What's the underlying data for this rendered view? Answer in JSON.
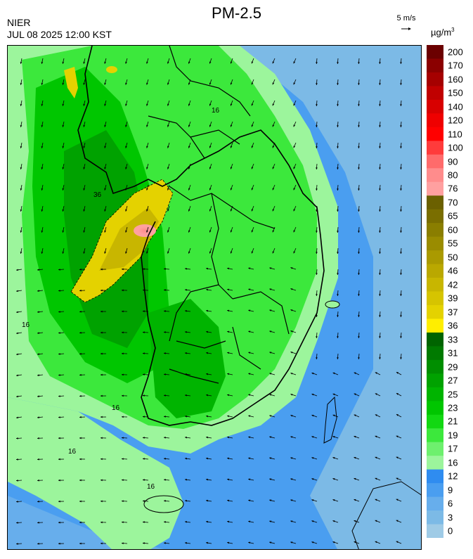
{
  "header": {
    "title": "PM-2.5",
    "agency": "NIER",
    "datetime": "JUL 08 2025 12:00 KST",
    "wind_reference": "5 m/s",
    "unit": "µg/m",
    "unit_exponent": "3"
  },
  "map": {
    "region": "South Korea",
    "variable": "PM-2.5 concentration",
    "contour_labels": [
      "16",
      "36",
      "16",
      "16",
      "16",
      "16"
    ],
    "wind_vectors": "shown"
  },
  "legend": {
    "levels": [
      "200",
      "170",
      "160",
      "150",
      "140",
      "120",
      "110",
      "100",
      "90",
      "80",
      "76",
      "70",
      "65",
      "60",
      "55",
      "50",
      "46",
      "42",
      "39",
      "37",
      "36",
      "33",
      "31",
      "29",
      "27",
      "25",
      "23",
      "21",
      "19",
      "17",
      "16",
      "12",
      "9",
      "6",
      "3",
      "0"
    ],
    "colors": [
      "#6b0000",
      "#8b0000",
      "#a50000",
      "#c00000",
      "#d80000",
      "#ef0000",
      "#ff0000",
      "#ff3b3b",
      "#ff6b6b",
      "#ff8c8c",
      "#ffa0a0",
      "#6b6000",
      "#7a6e00",
      "#8a7e00",
      "#9a8c00",
      "#aa9a00",
      "#baa800",
      "#c8b600",
      "#d6c400",
      "#e4d200",
      "#ffee00",
      "#006400",
      "#007a00",
      "#008e00",
      "#00a200",
      "#00b400",
      "#00c600",
      "#12d812",
      "#3ce83c",
      "#6ef06e",
      "#9cf59c",
      "#2f8cf0",
      "#4a9ef0",
      "#67aeec",
      "#7cbae6",
      "#9fcbe6"
    ]
  }
}
